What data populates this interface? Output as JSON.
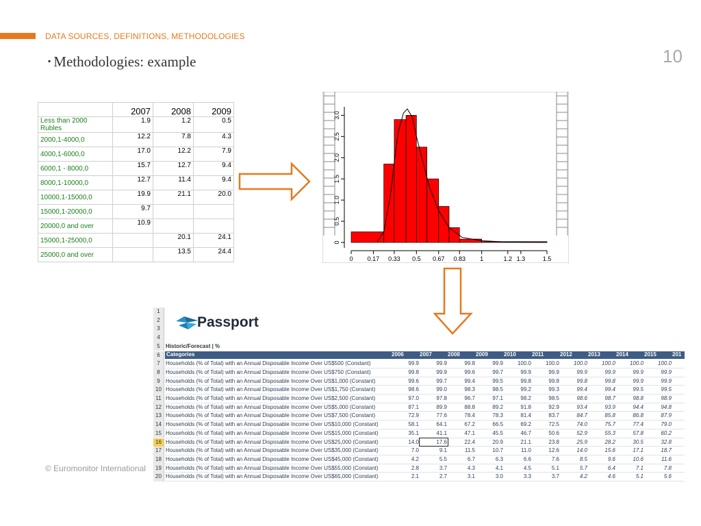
{
  "header": {
    "section_label": "DATA SOURCES, DEFINITIONS, METHODOLOGIES",
    "title": "Methodologies: example",
    "page_number": "10",
    "accent_color": "#e8781e"
  },
  "footer": {
    "text": "© Euromonitor International"
  },
  "income_table": {
    "years": [
      "2007",
      "2008",
      "2009"
    ],
    "rows": [
      {
        "label": "Less than 2000 Rubles",
        "values": [
          "1.9",
          "1.2",
          "0.5"
        ]
      },
      {
        "label": "2000,1-4000,0",
        "values": [
          "12.2",
          "7.8",
          "4.3"
        ]
      },
      {
        "label": "4000,1-6000,0",
        "values": [
          "17.0",
          "12.2",
          "7.9"
        ]
      },
      {
        "label": "6000,1 - 8000,0",
        "values": [
          "15.7",
          "12.7",
          "9.4"
        ]
      },
      {
        "label": "8000,1-10000,0",
        "values": [
          "12.7",
          "11.4",
          "9.4"
        ]
      },
      {
        "label": "10000,1-15000,0",
        "values": [
          "19.9",
          "21.1",
          "20.0"
        ]
      },
      {
        "label": "15000,1-20000,0",
        "values": [
          "9.7",
          "",
          ""
        ]
      },
      {
        "label": "20000,0 and over",
        "values": [
          "10.9",
          "",
          ""
        ]
      },
      {
        "label": "15000,1-25000,0",
        "values": [
          "",
          "20.1",
          "24.1"
        ]
      },
      {
        "label": "25000,0 and over",
        "values": [
          "",
          "13.5",
          "24.4"
        ]
      }
    ]
  },
  "chart_data": {
    "type": "bar",
    "x_ticks": [
      "0",
      "0.17",
      "0.33",
      "0.5",
      "0.67",
      "0.83",
      "1",
      "1.2",
      "1.3",
      "1.5"
    ],
    "y_ticks": [
      "0",
      "0.5",
      "1.0",
      "1.5",
      "2.0",
      "2.5",
      "3.0"
    ],
    "xlim": [
      0,
      1.5
    ],
    "ylim": [
      0,
      3.2
    ],
    "bins": [
      {
        "x0": 0.0,
        "x1": 0.25,
        "value": 0.25
      },
      {
        "x0": 0.25,
        "x1": 0.33,
        "value": 1.85
      },
      {
        "x0": 0.33,
        "x1": 0.42,
        "value": 2.9
      },
      {
        "x0": 0.42,
        "x1": 0.5,
        "value": 3.0
      },
      {
        "x0": 0.5,
        "x1": 0.58,
        "value": 2.25
      },
      {
        "x0": 0.58,
        "x1": 0.67,
        "value": 1.5
      },
      {
        "x0": 0.67,
        "x1": 0.75,
        "value": 0.85
      },
      {
        "x0": 0.75,
        "x1": 0.83,
        "value": 0.35
      },
      {
        "x0": 0.83,
        "x1": 1.0,
        "value": 0.08
      },
      {
        "x0": 1.0,
        "x1": 1.5,
        "value": 0.02
      }
    ],
    "curve": [
      [
        0.2,
        0.02
      ],
      [
        0.25,
        0.25
      ],
      [
        0.3,
        1.1
      ],
      [
        0.33,
        1.9
      ],
      [
        0.36,
        2.6
      ],
      [
        0.4,
        3.05
      ],
      [
        0.43,
        3.15
      ],
      [
        0.47,
        2.95
      ],
      [
        0.5,
        2.5
      ],
      [
        0.55,
        1.9
      ],
      [
        0.6,
        1.3
      ],
      [
        0.67,
        0.75
      ],
      [
        0.75,
        0.35
      ],
      [
        0.85,
        0.12
      ],
      [
        1.0,
        0.04
      ],
      [
        1.2,
        0.01
      ],
      [
        1.5,
        0.0
      ]
    ],
    "bar_color": "#ff0000",
    "grid": false
  },
  "spreadsheet": {
    "logo_text": "Passport",
    "heading": "Historic/Forecast | %",
    "category_header": "Categories",
    "years": [
      "2006",
      "2007",
      "2008",
      "2009",
      "2010",
      "2011",
      "2012",
      "2013",
      "2014",
      "2015",
      "201"
    ],
    "header_color": "#3f5c85",
    "row_numbers": [
      "1",
      "2",
      "3",
      "4",
      "5",
      "6",
      "7",
      "8",
      "9",
      "10",
      "11",
      "12",
      "13",
      "14",
      "15",
      "16",
      "17",
      "18",
      "19",
      "20"
    ],
    "selected_row": "16",
    "rows": [
      {
        "label": "Households (% of Total) with an Annual Disposable Income Over US$500 (Constant)",
        "values": [
          "99.9",
          "99.9",
          "99.8",
          "99.9",
          "100.0",
          "100.0",
          "100.0",
          "100.0",
          "100.0",
          "100.0"
        ]
      },
      {
        "label": "Households (% of Total) with an Annual Disposable Income Over US$750 (Constant)",
        "values": [
          "99.8",
          "99.9",
          "99.6",
          "99.7",
          "99.9",
          "99.9",
          "99.9",
          "99.9",
          "99.9",
          "99.9"
        ]
      },
      {
        "label": "Households (% of Total) with an Annual Disposable Income Over US$1,000 (Constant)",
        "values": [
          "99.6",
          "99.7",
          "99.4",
          "99.5",
          "99.8",
          "99.8",
          "99.8",
          "99.8",
          "99.9",
          "99.9"
        ]
      },
      {
        "label": "Households (% of Total) with an Annual Disposable Income Over US$1,750 (Constant)",
        "values": [
          "98.6",
          "99.0",
          "98.3",
          "98.5",
          "99.2",
          "99.3",
          "99.4",
          "99.4",
          "99.5",
          "99.5"
        ]
      },
      {
        "label": "Households (% of Total) with an Annual Disposable Income Over US$2,500 (Constant)",
        "values": [
          "97.0",
          "97.8",
          "96.7",
          "97.1",
          "98.2",
          "98.5",
          "98.6",
          "98.7",
          "98.8",
          "98.9"
        ]
      },
      {
        "label": "Households (% of Total) with an Annual Disposable Income Over US$5,000 (Constant)",
        "values": [
          "87.1",
          "89.9",
          "88.8",
          "89.2",
          "91.8",
          "92.9",
          "93.4",
          "93.9",
          "94.4",
          "94.8"
        ]
      },
      {
        "label": "Households (% of Total) with an Annual Disposable Income Over US$7,500 (Constant)",
        "values": [
          "72.9",
          "77.6",
          "78.4",
          "78.3",
          "81.4",
          "83.7",
          "84.7",
          "85.8",
          "86.8",
          "87.9"
        ]
      },
      {
        "label": "Households (% of Total) with an Annual Disposable Income Over US$10,000 (Constant)",
        "values": [
          "58.1",
          "64.1",
          "67.2",
          "66.5",
          "69.2",
          "72.5",
          "74.0",
          "75.7",
          "77.4",
          "79.0"
        ]
      },
      {
        "label": "Households (% of Total) with an Annual Disposable Income Over US$15,000 (Constant)",
        "values": [
          "35.1",
          "41.1",
          "47.1",
          "45.5",
          "46.7",
          "50.6",
          "52.9",
          "55.3",
          "57.8",
          "60.2"
        ]
      },
      {
        "label": "Households (% of Total) with an Annual Disposable Income Over US$25,000 (Constant)",
        "values": [
          "14.0",
          "17.6",
          "22.4",
          "20.9",
          "21.1",
          "23.8",
          "25.9",
          "28.2",
          "30.5",
          "32.8"
        ]
      },
      {
        "label": "Households (% of Total) with an Annual Disposable Income Over US$35,000 (Constant)",
        "values": [
          "7.0",
          "9.1",
          "11.5",
          "10.7",
          "11.0",
          "12.6",
          "14.0",
          "15.6",
          "17.1",
          "18.7"
        ]
      },
      {
        "label": "Households (% of Total) with an Annual Disposable Income Over US$45,000 (Constant)",
        "values": [
          "4.2",
          "5.5",
          "6.7",
          "6.3",
          "6.6",
          "7.6",
          "8.5",
          "9.6",
          "10.6",
          "11.6"
        ]
      },
      {
        "label": "Households (% of Total) with an Annual Disposable Income Over US$55,000 (Constant)",
        "values": [
          "2.8",
          "3.7",
          "4.3",
          "4.1",
          "4.5",
          "5.1",
          "5.7",
          "6.4",
          "7.1",
          "7.8"
        ]
      },
      {
        "label": "Households (% of Total) with an Annual Disposable Income Over US$65,000 (Constant)",
        "values": [
          "2.1",
          "2.7",
          "3.1",
          "3.0",
          "3.3",
          "3.7",
          "4.2",
          "4.6",
          "5.1",
          "5.6"
        ]
      }
    ]
  }
}
